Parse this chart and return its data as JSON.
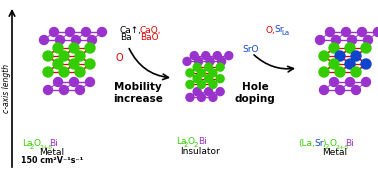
{
  "bg_color": "#ffffff",
  "green_color": "#33cc00",
  "purple_color": "#9933cc",
  "red_color": "#dd0000",
  "blue_color": "#1144cc",
  "black_color": "#000000",
  "axis_label": "c-axis length",
  "left_formula": [
    "La",
    "2",
    "O",
    "2+δ",
    "Bi"
  ],
  "left_sub1": "Metal",
  "left_sub2": "150 cm²V⁻¹s⁻¹",
  "mid_formula": [
    "La",
    "2",
    "O",
    "2",
    "Bi"
  ],
  "mid_sub": "Insulator",
  "right_formula": [
    "(La,",
    "Sr",
    ")",
    "2",
    "O",
    "2+δ",
    "Bi"
  ],
  "right_sub": "Metal",
  "mob_title": "Mobility\nincrease",
  "hole_title": "Hole\ndoping",
  "arr1_ca": "Ca↑,",
  "arr1_ba": "Ba",
  "arr1_cao": "CaO,",
  "arr1_bao": "BaO",
  "arr1_o": "O",
  "arr2_sro": "SrO",
  "arr2_o": "O,",
  "arr2_sr": "Sr",
  "arr2_la": "La"
}
